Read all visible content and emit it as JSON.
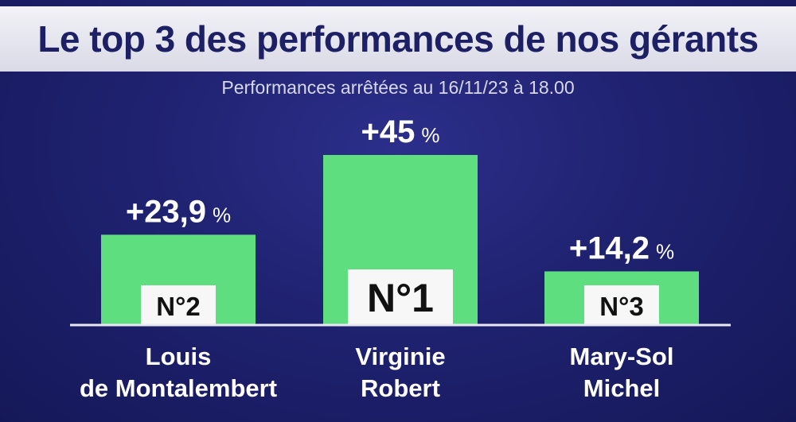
{
  "header": {
    "title": "Le top 3 des performances de nos gérants",
    "subtitle": "Performances arrêtées au 16/11/23 à 18.00"
  },
  "colors": {
    "bar": "#5fde80",
    "background": "#1f2270",
    "title_text": "#1e2066"
  },
  "chart_data": {
    "type": "bar",
    "title": "Le top 3 des performances de nos gérants",
    "subtitle": "Performances arrêtées au 16/11/23 à 18.00",
    "categories": [
      "Louis de Montalembert",
      "Virginie Robert",
      "Mary-Sol Michel"
    ],
    "category_lines": [
      [
        "Louis",
        "de Montalembert"
      ],
      [
        "Virginie",
        "Robert"
      ],
      [
        "Mary-Sol",
        "Michel"
      ]
    ],
    "values": [
      23.9,
      45,
      14.2
    ],
    "value_labels": [
      "+23,9",
      "+45",
      "+14,2"
    ],
    "unit": "%",
    "ranks": [
      "N°2",
      "N°1",
      "N°3"
    ],
    "ylim": [
      0,
      45
    ],
    "grid": false,
    "legend": "none"
  }
}
